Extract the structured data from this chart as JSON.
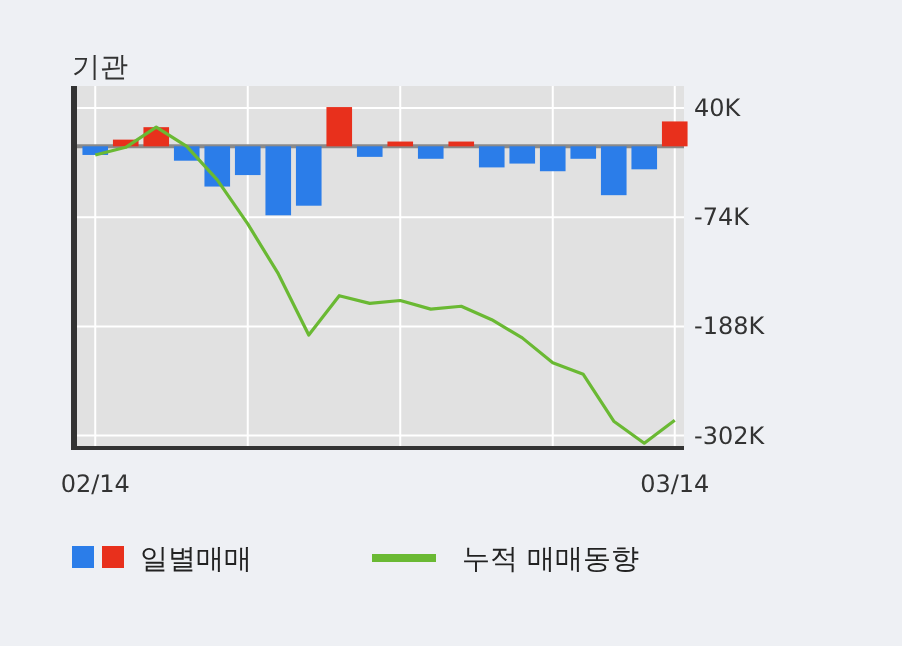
{
  "chart_data": {
    "type": "bar",
    "title": "기관",
    "categories": [
      "02/14",
      null,
      null,
      null,
      null,
      null,
      null,
      null,
      null,
      null,
      null,
      null,
      null,
      null,
      null,
      null,
      null,
      null,
      null,
      "03/14"
    ],
    "series": [
      {
        "name": "일별매매",
        "colors": [
          "#2b7de9",
          "#e8301c",
          "#e8301c",
          "#2b7de9",
          "#2b7de9",
          "#2b7de9",
          "#2b7de9",
          "#2b7de9",
          "#e8301c",
          "#2b7de9",
          "#e8301c",
          "#2b7de9",
          "#e8301c",
          "#2b7de9",
          "#2b7de9",
          "#2b7de9",
          "#2b7de9",
          "#2b7de9",
          "#2b7de9",
          "#e8301c"
        ],
        "values": [
          -9,
          7,
          20,
          -15,
          -42,
          -30,
          -72,
          -62,
          41,
          -11,
          5,
          -13,
          5,
          -22,
          -18,
          -26,
          -13,
          -51,
          -24,
          26
        ]
      },
      {
        "name": "누적 매매동향",
        "type": "line",
        "color": "#6ab933",
        "values": [
          -9,
          -1,
          20,
          0,
          -35,
          -81,
          -133,
          -197,
          -156,
          -164,
          -161,
          -170,
          -167,
          -181,
          -200,
          -226,
          -238,
          -287,
          -310,
          -286
        ]
      }
    ],
    "ylim": [
      -315,
      63
    ],
    "yticks": [
      {
        "value": 40,
        "label": "40K"
      },
      {
        "value": -74,
        "label": "-74K"
      },
      {
        "value": -188,
        "label": "-188K"
      },
      {
        "value": -302,
        "label": "-302K"
      }
    ],
    "grid": true,
    "legend": "bottom"
  }
}
